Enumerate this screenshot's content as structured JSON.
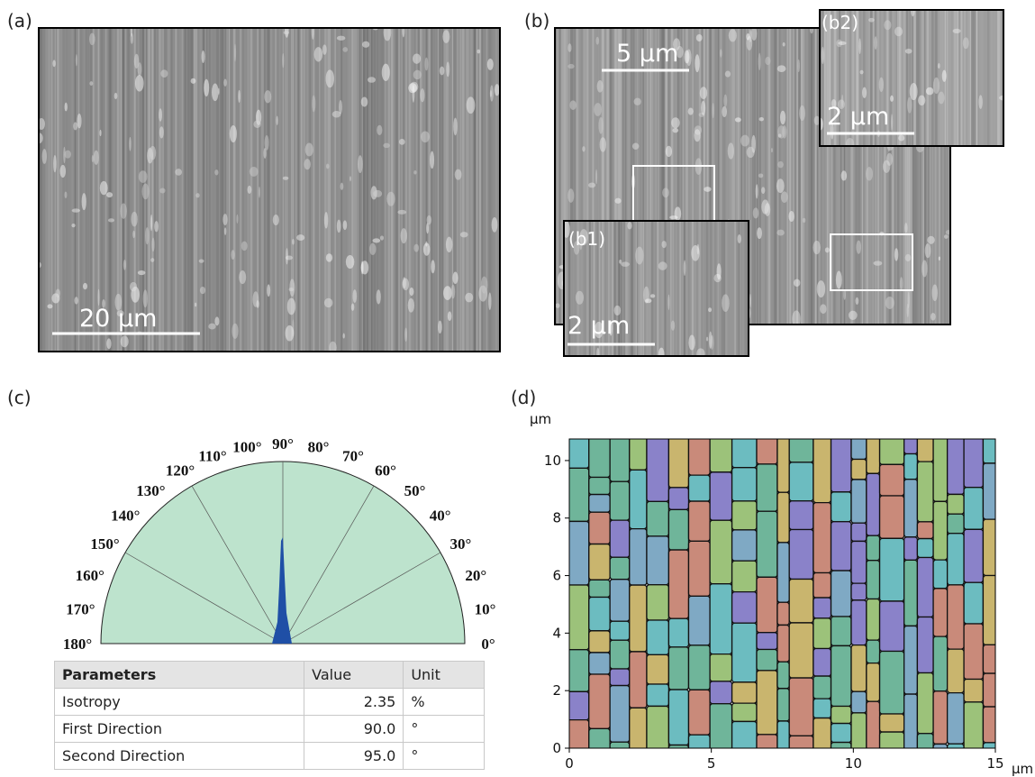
{
  "panels": {
    "a": {
      "label": "(a)",
      "scale_bar": "20 µm"
    },
    "b": {
      "label": "(b)",
      "scale_bar": "5 µm",
      "insets": [
        {
          "label": "(b1)",
          "scale_bar": "2 µm"
        },
        {
          "label": "(b2)",
          "scale_bar": "2 µm"
        }
      ]
    },
    "c": {
      "label": "(c)",
      "angle_labels": [
        "0°",
        "10°",
        "20°",
        "30°",
        "40°",
        "50°",
        "60°",
        "70°",
        "80°",
        "90°",
        "100°",
        "110°",
        "120°",
        "130°",
        "140°",
        "150°",
        "160°",
        "170°",
        "180°"
      ],
      "table": {
        "header": [
          "Parameters",
          "Value",
          "Unit"
        ],
        "rows": [
          [
            "Isotropy",
            "2.35",
            "%"
          ],
          [
            "First Direction",
            "90.0",
            "°"
          ],
          [
            "Second Direction",
            "95.0",
            "°"
          ]
        ]
      }
    },
    "d": {
      "label": "(d)",
      "y_unit": "µm",
      "x_unit": "µm",
      "xlim": [
        0,
        15
      ],
      "ylim": [
        0,
        10.75
      ],
      "xticks": [
        0,
        5,
        10,
        15
      ],
      "yticks": [
        0,
        2,
        4,
        6,
        8,
        10
      ]
    }
  }
}
